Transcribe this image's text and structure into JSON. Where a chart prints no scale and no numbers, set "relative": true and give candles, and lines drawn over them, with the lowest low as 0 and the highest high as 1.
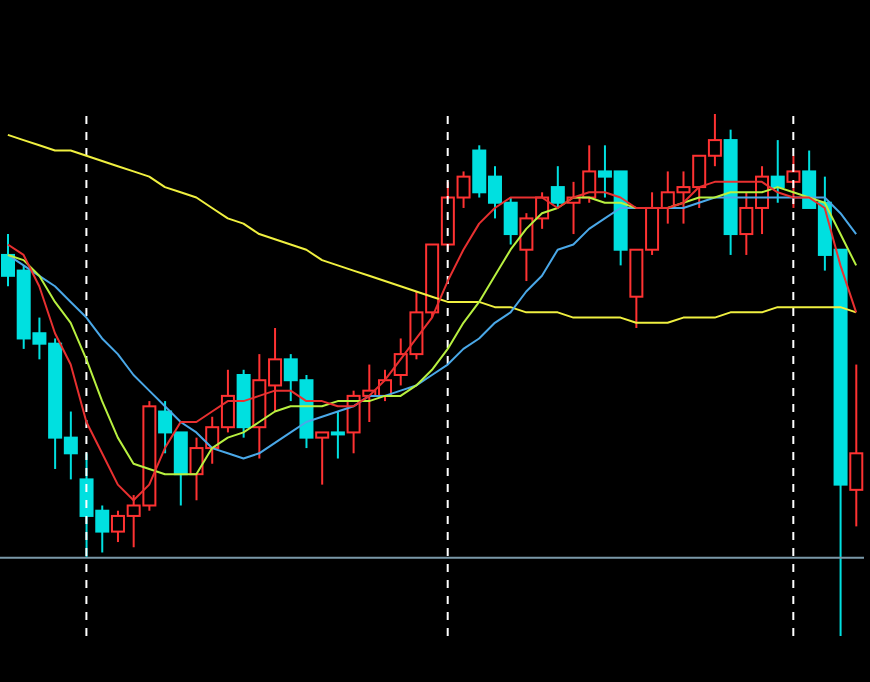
{
  "chart_data": {
    "type": "candlestick",
    "relative": true,
    "categories": [
      null,
      null,
      null,
      null,
      null,
      null,
      null,
      null,
      null,
      null,
      null,
      null,
      null,
      null,
      null,
      null,
      null,
      null,
      null,
      null,
      null,
      null,
      null,
      null,
      null,
      null,
      null,
      null,
      null,
      null,
      null,
      null,
      null,
      null,
      null,
      null,
      null,
      null,
      null,
      null,
      null,
      null,
      null,
      null,
      null,
      null,
      null,
      null,
      null,
      null,
      null,
      null,
      null,
      null,
      null
    ],
    "ohlc": [
      [
        0.73,
        0.77,
        0.67,
        0.69
      ],
      [
        0.7,
        0.71,
        0.55,
        0.57
      ],
      [
        0.58,
        0.61,
        0.53,
        0.56
      ],
      [
        0.56,
        0.57,
        0.32,
        0.38
      ],
      [
        0.38,
        0.43,
        0.3,
        0.35
      ],
      [
        0.3,
        0.35,
        0.15,
        0.23
      ],
      [
        0.24,
        0.25,
        0.16,
        0.2
      ],
      [
        0.2,
        0.24,
        0.18,
        0.23
      ],
      [
        0.23,
        0.27,
        0.17,
        0.25
      ],
      [
        0.25,
        0.45,
        0.24,
        0.44
      ],
      [
        0.43,
        0.45,
        0.35,
        0.39
      ],
      [
        0.39,
        0.39,
        0.25,
        0.31
      ],
      [
        0.31,
        0.38,
        0.26,
        0.36
      ],
      [
        0.36,
        0.42,
        0.33,
        0.4
      ],
      [
        0.4,
        0.51,
        0.39,
        0.46
      ],
      [
        0.5,
        0.51,
        0.38,
        0.4
      ],
      [
        0.4,
        0.54,
        0.34,
        0.49
      ],
      [
        0.48,
        0.59,
        0.43,
        0.53
      ],
      [
        0.53,
        0.54,
        0.45,
        0.49
      ],
      [
        0.49,
        0.5,
        0.36,
        0.38
      ],
      [
        0.38,
        0.39,
        0.29,
        0.39
      ],
      [
        0.39,
        0.43,
        0.34,
        0.39
      ],
      [
        0.39,
        0.47,
        0.35,
        0.46
      ],
      [
        0.46,
        0.52,
        0.41,
        0.47
      ],
      [
        0.46,
        0.51,
        0.45,
        0.49
      ],
      [
        0.5,
        0.57,
        0.48,
        0.54
      ],
      [
        0.54,
        0.66,
        0.53,
        0.62
      ],
      [
        0.62,
        0.75,
        0.61,
        0.75
      ],
      [
        0.75,
        0.87,
        0.74,
        0.84
      ],
      [
        0.84,
        0.89,
        0.82,
        0.88
      ],
      [
        0.93,
        0.94,
        0.84,
        0.85
      ],
      [
        0.88,
        0.9,
        0.8,
        0.83
      ],
      [
        0.83,
        0.84,
        0.75,
        0.77
      ],
      [
        0.74,
        0.81,
        0.68,
        0.8
      ],
      [
        0.8,
        0.85,
        0.78,
        0.84
      ],
      [
        0.86,
        0.9,
        0.82,
        0.83
      ],
      [
        0.83,
        0.87,
        0.77,
        0.84
      ],
      [
        0.84,
        0.94,
        0.83,
        0.89
      ],
      [
        0.89,
        0.94,
        0.84,
        0.88
      ],
      [
        0.89,
        0.89,
        0.71,
        0.74
      ],
      [
        0.65,
        0.74,
        0.59,
        0.74
      ],
      [
        0.74,
        0.85,
        0.73,
        0.82
      ],
      [
        0.82,
        0.89,
        0.79,
        0.85
      ],
      [
        0.85,
        0.89,
        0.79,
        0.86
      ],
      [
        0.86,
        0.92,
        0.82,
        0.92
      ],
      [
        0.92,
        1.0,
        0.9,
        0.95
      ],
      [
        0.95,
        0.97,
        0.73,
        0.77
      ],
      [
        0.77,
        0.85,
        0.73,
        0.82
      ],
      [
        0.82,
        0.9,
        0.77,
        0.88
      ],
      [
        0.88,
        0.95,
        0.83,
        0.86
      ],
      [
        0.87,
        0.92,
        0.82,
        0.89
      ],
      [
        0.89,
        0.93,
        0.82,
        0.82
      ],
      [
        0.83,
        0.88,
        0.7,
        0.73
      ],
      [
        0.74,
        0.74,
        0,
        0.29
      ],
      [
        0.28,
        0.52,
        0.21,
        0.35
      ]
    ],
    "colors": [
      "#00e0e0",
      "#00e0e0",
      "#00e0e0",
      "#00e0e0",
      "#00e0e0",
      "#00e0e0",
      "#00e0e0",
      "#ff3232",
      "#ff3232",
      "#ff3232",
      "#00e0e0",
      "#00e0e0",
      "#ff3232",
      "#ff3232",
      "#ff3232",
      "#00e0e0",
      "#ff3232",
      "#ff3232",
      "#00e0e0",
      "#00e0e0",
      "#ff3232",
      "#00e0e0",
      "#ff3232",
      "#ff3232",
      "#ff3232",
      "#ff3232",
      "#ff3232",
      "#ff3232",
      "#ff3232",
      "#ff3232",
      "#00e0e0",
      "#00e0e0",
      "#00e0e0",
      "#ff3232",
      "#ff3232",
      "#00e0e0",
      "#ff3232",
      "#ff3232",
      "#00e0e0",
      "#00e0e0",
      "#ff3232",
      "#ff3232",
      "#ff3232",
      "#ff3232",
      "#ff3232",
      "#ff3232",
      "#00e0e0",
      "#ff3232",
      "#ff3232",
      "#00e0e0",
      "#ff3232",
      "#00e0e0",
      "#00e0e0",
      "#00e0e0",
      "#ff3232"
    ],
    "series": [
      {
        "type": "line",
        "color": "#f0f040",
        "values": [
          0.96,
          0.95,
          0.94,
          0.93,
          0.93,
          0.92,
          0.91,
          0.9,
          0.89,
          0.88,
          0.86,
          0.85,
          0.84,
          0.82,
          0.8,
          0.79,
          0.77,
          0.76,
          0.75,
          0.74,
          0.72,
          0.71,
          0.7,
          0.69,
          0.68,
          0.67,
          0.66,
          0.65,
          0.64,
          0.64,
          0.64,
          0.63,
          0.63,
          0.62,
          0.62,
          0.62,
          0.61,
          0.61,
          0.61,
          0.61,
          0.6,
          0.6,
          0.6,
          0.61,
          0.61,
          0.61,
          0.62,
          0.62,
          0.62,
          0.63,
          0.63,
          0.63,
          0.63,
          0.63,
          0.62
        ]
      },
      {
        "type": "line",
        "color": "#4aa8e8",
        "values": [
          0.73,
          0.71,
          0.69,
          0.67,
          0.64,
          0.61,
          0.57,
          0.54,
          0.5,
          0.47,
          0.44,
          0.41,
          0.39,
          0.36,
          0.35,
          0.34,
          0.35,
          0.37,
          0.39,
          0.41,
          0.42,
          0.43,
          0.44,
          0.46,
          0.46,
          0.47,
          0.48,
          0.5,
          0.52,
          0.55,
          0.57,
          0.6,
          0.62,
          0.66,
          0.69,
          0.74,
          0.75,
          0.78,
          0.8,
          0.82,
          0.82,
          0.82,
          0.82,
          0.82,
          0.83,
          0.84,
          0.84,
          0.84,
          0.84,
          0.84,
          0.84,
          0.84,
          0.84,
          0.81,
          0.77
        ]
      },
      {
        "type": "line",
        "color": "#b8f040",
        "values": [
          0.73,
          0.72,
          0.69,
          0.64,
          0.6,
          0.53,
          0.45,
          0.38,
          0.33,
          0.32,
          0.31,
          0.31,
          0.31,
          0.36,
          0.38,
          0.39,
          0.41,
          0.43,
          0.44,
          0.44,
          0.44,
          0.45,
          0.45,
          0.45,
          0.46,
          0.46,
          0.48,
          0.51,
          0.55,
          0.6,
          0.64,
          0.69,
          0.74,
          0.78,
          0.81,
          0.82,
          0.84,
          0.84,
          0.83,
          0.83,
          0.82,
          0.82,
          0.82,
          0.83,
          0.84,
          0.84,
          0.85,
          0.85,
          0.85,
          0.86,
          0.85,
          0.84,
          0.83,
          0.77,
          0.71
        ]
      },
      {
        "type": "line",
        "color": "#e83030",
        "values": [
          0.75,
          0.73,
          0.67,
          0.58,
          0.52,
          0.41,
          0.35,
          0.29,
          0.26,
          0.29,
          0.36,
          0.41,
          0.41,
          0.43,
          0.45,
          0.45,
          0.46,
          0.47,
          0.47,
          0.45,
          0.45,
          0.44,
          0.44,
          0.46,
          0.49,
          0.53,
          0.57,
          0.61,
          0.68,
          0.74,
          0.79,
          0.82,
          0.84,
          0.84,
          0.84,
          0.82,
          0.84,
          0.85,
          0.85,
          0.84,
          0.82,
          0.82,
          0.82,
          0.83,
          0.86,
          0.87,
          0.87,
          0.87,
          0.87,
          0.85,
          0.84,
          0.84,
          0.82,
          0.71,
          0.62
        ]
      }
    ],
    "grid": "x",
    "ref_lines": [
      {
        "axis": "y",
        "value": 0.15,
        "color": "#7a98a8"
      }
    ]
  }
}
